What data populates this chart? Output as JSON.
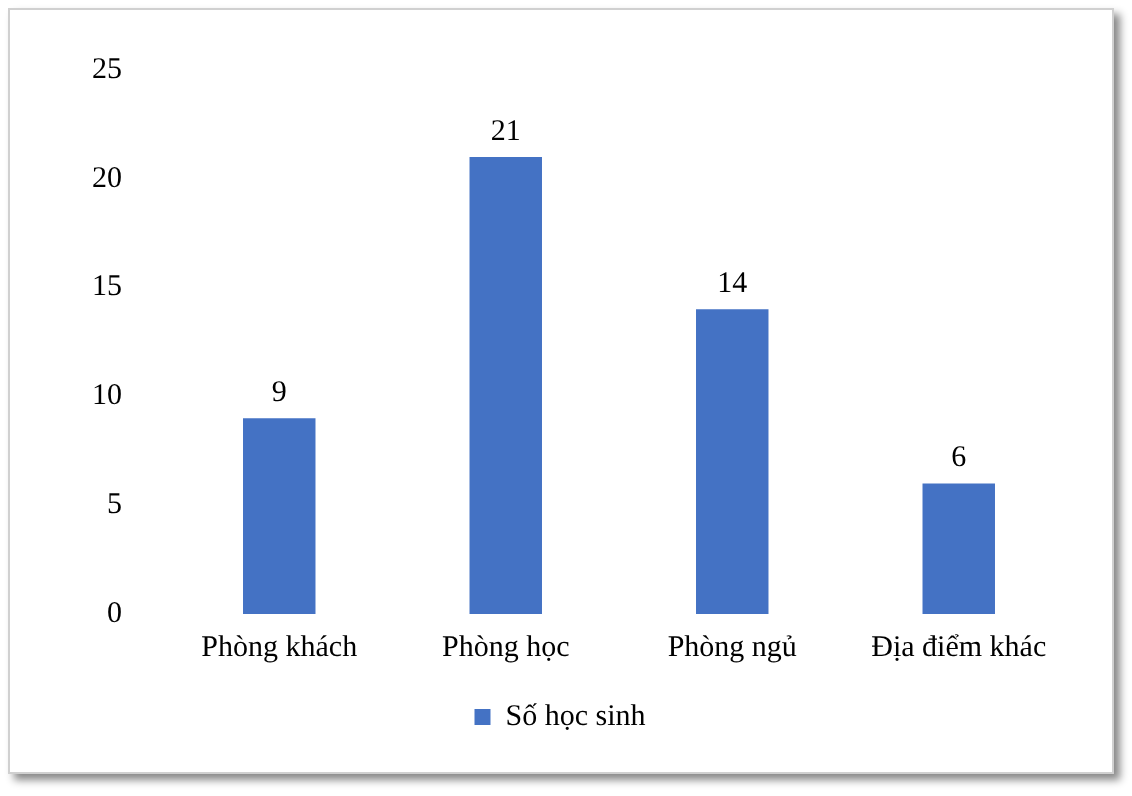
{
  "chart_data": {
    "type": "bar",
    "categories": [
      "Phòng khách",
      "Phòng học",
      "Phòng ngủ",
      "Địa điểm khác"
    ],
    "series": [
      {
        "name": "Số học sinh",
        "color": "#4472c4",
        "values": [
          9,
          21,
          14,
          6
        ]
      }
    ],
    "ylim": [
      0,
      25
    ],
    "yticks": [
      0,
      5,
      10,
      15,
      20,
      25
    ],
    "grid": false,
    "legend": "bottom",
    "data_labels": true
  }
}
